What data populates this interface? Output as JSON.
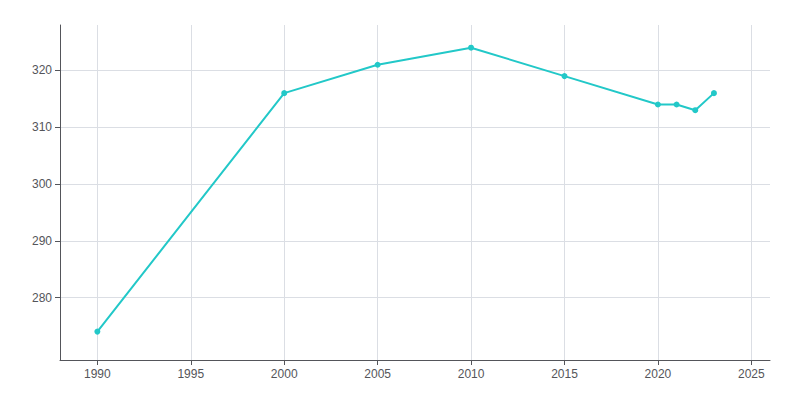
{
  "chart_data": {
    "type": "line",
    "x": [
      1990,
      2000,
      2005,
      2010,
      2015,
      2020,
      2021,
      2022,
      2023
    ],
    "values": [
      274,
      316,
      321,
      324,
      319,
      314,
      314,
      313,
      316
    ],
    "color": "#22c8c8",
    "marker": "circle",
    "xlim": [
      1988,
      2026
    ],
    "xticks": [
      1990,
      1995,
      2000,
      2005,
      2010,
      2015,
      2020,
      2025
    ],
    "ylim": [
      269,
      328
    ],
    "yticks": [
      280,
      290,
      300,
      310,
      320
    ],
    "grid": true
  }
}
